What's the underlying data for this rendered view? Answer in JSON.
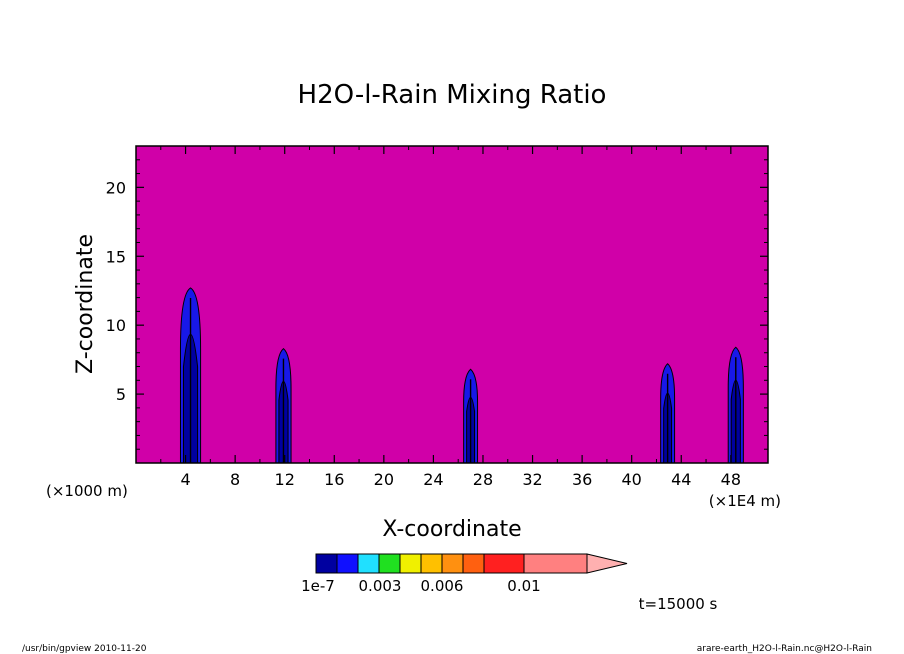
{
  "chart_data": {
    "type": "heatmap",
    "title": "H2O-l-Rain Mixing Ratio",
    "xlabel": "X-coordinate",
    "ylabel": "Z-coordinate",
    "x_unit_left": "(×1000 m)",
    "x_unit_right": "(×1E4 m)",
    "xlim": [
      0,
      51
    ],
    "ylim": [
      0,
      23
    ],
    "x_ticks": [
      4,
      8,
      12,
      16,
      20,
      24,
      28,
      32,
      36,
      40,
      44,
      48
    ],
    "y_ticks": [
      5,
      10,
      15,
      20
    ],
    "background_color": "#d000a8",
    "columns": [
      {
        "x": 4.4,
        "top": 12.7,
        "width": 1.3
      },
      {
        "x": 11.9,
        "top": 8.3,
        "width": 0.9
      },
      {
        "x": 27.0,
        "top": 6.8,
        "width": 0.8
      },
      {
        "x": 42.9,
        "top": 7.2,
        "width": 0.8
      },
      {
        "x": 48.4,
        "top": 8.4,
        "width": 0.9
      }
    ],
    "colorbar": {
      "colors": [
        "#0000a0",
        "#1010ff",
        "#20e0ff",
        "#20e020",
        "#f0f000",
        "#ffc000",
        "#ff9010",
        "#ff6010",
        "#ff2020",
        "#ff8080",
        "#ffb0b0"
      ],
      "labels": [
        "1e-7",
        "0.003",
        "0.006",
        "0.01"
      ]
    },
    "time_label": "t=15000 s"
  },
  "footer": {
    "left": "/usr/bin/gpview   2010-11-20",
    "right": "arare-earth_H2O-l-Rain.nc@H2O-l-Rain"
  }
}
